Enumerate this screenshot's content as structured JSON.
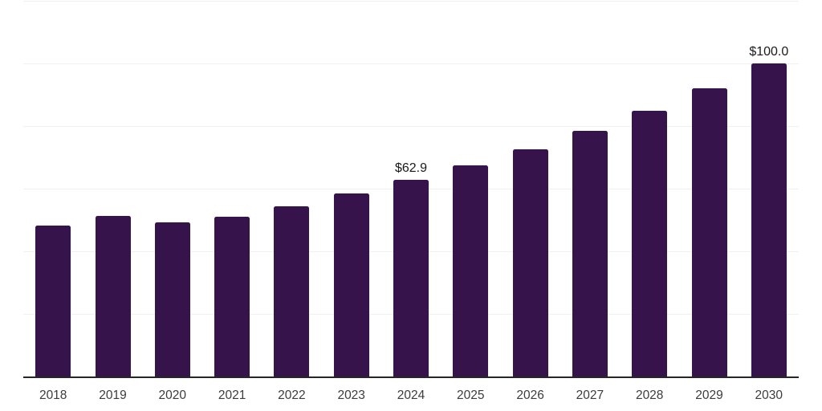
{
  "chart_data": {
    "type": "bar",
    "title": "",
    "categories": [
      "2018",
      "2019",
      "2020",
      "2021",
      "2022",
      "2023",
      "2024",
      "2025",
      "2026",
      "2027",
      "2028",
      "2029",
      "2030"
    ],
    "values": [
      48.4,
      51.4,
      49.4,
      51.2,
      54.5,
      58.6,
      62.9,
      67.5,
      72.8,
      78.6,
      84.9,
      92.1,
      100.0
    ],
    "value_labels": [
      null,
      null,
      null,
      null,
      null,
      null,
      "$62.9",
      null,
      null,
      null,
      null,
      null,
      "$100.0"
    ],
    "xlabel": "",
    "ylabel": "",
    "ylim": [
      0,
      120
    ],
    "gridline_values": [
      20,
      40,
      60,
      80,
      100,
      120
    ],
    "grid": true,
    "legend_position": "none",
    "y_axis_tick_labels_visible": false,
    "colors": {
      "bar": "#36134a",
      "value_label": "#1a1a1a",
      "axis_tick_label": "#3c3c3c",
      "gridline": "#f0f0f0",
      "baseline": "#262626",
      "background": "#ffffff"
    }
  }
}
